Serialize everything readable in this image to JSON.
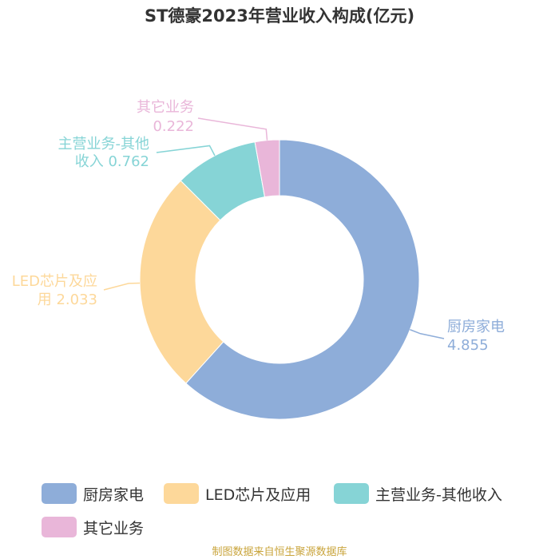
{
  "chart_data": {
    "type": "pie",
    "title": "ST德豪2023年营业收入构成(亿元)",
    "series": [
      {
        "name": "厨房家电",
        "value": 4.855,
        "label_lines": [
          "厨房家电",
          "4.855"
        ],
        "color": "#8eadd9"
      },
      {
        "name": "LED芯片及应用",
        "value": 2.033,
        "label_lines": [
          "LED芯片及应",
          "用 2.033"
        ],
        "color": "#fdd89a"
      },
      {
        "name": "主营业务-其他收入",
        "value": 0.762,
        "label_lines": [
          "主营业务-其他",
          "收入 0.762"
        ],
        "color": "#86d4d6"
      },
      {
        "name": "其它业务",
        "value": 0.222,
        "label_lines": [
          "其它业务",
          "0.222"
        ],
        "color": "#e9b6d9"
      }
    ],
    "legend": [
      "厨房家电",
      "LED芯片及应用",
      "主营业务-其他收入",
      "其它业务"
    ],
    "legend_position": "bottom",
    "donut": true
  },
  "source": "制图数据来自恒生聚源数据库"
}
